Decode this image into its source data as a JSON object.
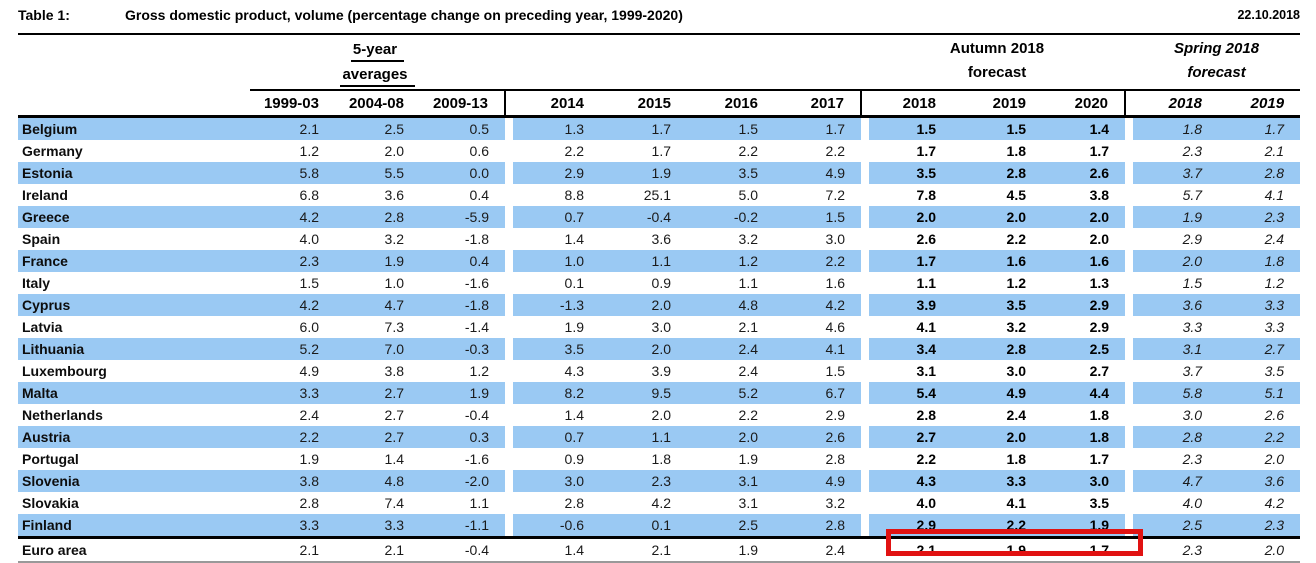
{
  "header": {
    "table_label": "Table 1:",
    "title": "Gross domestic product, volume (percentage change on preceding year, 1999-2020)",
    "date": "22.10.2018"
  },
  "table": {
    "groups": {
      "five_year": {
        "line1": "5-year",
        "line2": "averages"
      },
      "autumn": {
        "line1": "Autumn 2018",
        "line2": "forecast"
      },
      "spring": {
        "line1": "Spring 2018",
        "line2": "forecast"
      }
    },
    "year_columns": [
      "1999-03",
      "2004-08",
      "2009-13",
      "2014",
      "2015",
      "2016",
      "2017",
      "2018",
      "2019",
      "2020",
      "2018",
      "2019"
    ],
    "rows": [
      {
        "name": "Belgium",
        "highlight": true,
        "values": [
          "2.1",
          "2.5",
          "0.5",
          "1.3",
          "1.7",
          "1.5",
          "1.7",
          "1.5",
          "1.5",
          "1.4",
          "1.8",
          "1.7"
        ]
      },
      {
        "name": "Germany",
        "highlight": false,
        "values": [
          "1.2",
          "2.0",
          "0.6",
          "2.2",
          "1.7",
          "2.2",
          "2.2",
          "1.7",
          "1.8",
          "1.7",
          "2.3",
          "2.1"
        ]
      },
      {
        "name": "Estonia",
        "highlight": true,
        "values": [
          "5.8",
          "5.5",
          "0.0",
          "2.9",
          "1.9",
          "3.5",
          "4.9",
          "3.5",
          "2.8",
          "2.6",
          "3.7",
          "2.8"
        ]
      },
      {
        "name": "Ireland",
        "highlight": false,
        "values": [
          "6.8",
          "3.6",
          "0.4",
          "8.8",
          "25.1",
          "5.0",
          "7.2",
          "7.8",
          "4.5",
          "3.8",
          "5.7",
          "4.1"
        ]
      },
      {
        "name": "Greece",
        "highlight": true,
        "values": [
          "4.2",
          "2.8",
          "-5.9",
          "0.7",
          "-0.4",
          "-0.2",
          "1.5",
          "2.0",
          "2.0",
          "2.0",
          "1.9",
          "2.3"
        ]
      },
      {
        "name": "Spain",
        "highlight": false,
        "values": [
          "4.0",
          "3.2",
          "-1.8",
          "1.4",
          "3.6",
          "3.2",
          "3.0",
          "2.6",
          "2.2",
          "2.0",
          "2.9",
          "2.4"
        ]
      },
      {
        "name": "France",
        "highlight": true,
        "values": [
          "2.3",
          "1.9",
          "0.4",
          "1.0",
          "1.1",
          "1.2",
          "2.2",
          "1.7",
          "1.6",
          "1.6",
          "2.0",
          "1.8"
        ]
      },
      {
        "name": "Italy",
        "highlight": false,
        "values": [
          "1.5",
          "1.0",
          "-1.6",
          "0.1",
          "0.9",
          "1.1",
          "1.6",
          "1.1",
          "1.2",
          "1.3",
          "1.5",
          "1.2"
        ]
      },
      {
        "name": "Cyprus",
        "highlight": true,
        "values": [
          "4.2",
          "4.7",
          "-1.8",
          "-1.3",
          "2.0",
          "4.8",
          "4.2",
          "3.9",
          "3.5",
          "2.9",
          "3.6",
          "3.3"
        ]
      },
      {
        "name": "Latvia",
        "highlight": false,
        "values": [
          "6.0",
          "7.3",
          "-1.4",
          "1.9",
          "3.0",
          "2.1",
          "4.6",
          "4.1",
          "3.2",
          "2.9",
          "3.3",
          "3.3"
        ]
      },
      {
        "name": "Lithuania",
        "highlight": true,
        "values": [
          "5.2",
          "7.0",
          "-0.3",
          "3.5",
          "2.0",
          "2.4",
          "4.1",
          "3.4",
          "2.8",
          "2.5",
          "3.1",
          "2.7"
        ]
      },
      {
        "name": "Luxembourg",
        "highlight": false,
        "values": [
          "4.9",
          "3.8",
          "1.2",
          "4.3",
          "3.9",
          "2.4",
          "1.5",
          "3.1",
          "3.0",
          "2.7",
          "3.7",
          "3.5"
        ]
      },
      {
        "name": "Malta",
        "highlight": true,
        "values": [
          "3.3",
          "2.7",
          "1.9",
          "8.2",
          "9.5",
          "5.2",
          "6.7",
          "5.4",
          "4.9",
          "4.4",
          "5.8",
          "5.1"
        ]
      },
      {
        "name": "Netherlands",
        "highlight": false,
        "values": [
          "2.4",
          "2.7",
          "-0.4",
          "1.4",
          "2.0",
          "2.2",
          "2.9",
          "2.8",
          "2.4",
          "1.8",
          "3.0",
          "2.6"
        ]
      },
      {
        "name": "Austria",
        "highlight": true,
        "values": [
          "2.2",
          "2.7",
          "0.3",
          "0.7",
          "1.1",
          "2.0",
          "2.6",
          "2.7",
          "2.0",
          "1.8",
          "2.8",
          "2.2"
        ]
      },
      {
        "name": "Portugal",
        "highlight": false,
        "values": [
          "1.9",
          "1.4",
          "-1.6",
          "0.9",
          "1.8",
          "1.9",
          "2.8",
          "2.2",
          "1.8",
          "1.7",
          "2.3",
          "2.0"
        ]
      },
      {
        "name": "Slovenia",
        "highlight": true,
        "values": [
          "3.8",
          "4.8",
          "-2.0",
          "3.0",
          "2.3",
          "3.1",
          "4.9",
          "4.3",
          "3.3",
          "3.0",
          "4.7",
          "3.6"
        ]
      },
      {
        "name": "Slovakia",
        "highlight": false,
        "values": [
          "2.8",
          "7.4",
          "1.1",
          "2.8",
          "4.2",
          "3.1",
          "3.2",
          "4.0",
          "4.1",
          "3.5",
          "4.0",
          "4.2"
        ]
      },
      {
        "name": "Finland",
        "highlight": true,
        "values": [
          "3.3",
          "3.3",
          "-1.1",
          "-0.6",
          "0.1",
          "2.5",
          "2.8",
          "2.9",
          "2.2",
          "1.9",
          "2.5",
          "2.3"
        ]
      },
      {
        "name": "Euro area",
        "highlight": false,
        "is_total": true,
        "values": [
          "2.1",
          "2.1",
          "-0.4",
          "1.4",
          "2.1",
          "1.9",
          "2.4",
          "2.1",
          "1.9",
          "1.7",
          "2.3",
          "2.0"
        ]
      }
    ],
    "colors": {
      "row_highlight": "#9ac9f3"
    },
    "annotations": {
      "highlight_box_color": "#e11212",
      "highlight_box_target": "Euro area Autumn 2018 forecast values 2018-2020"
    }
  }
}
